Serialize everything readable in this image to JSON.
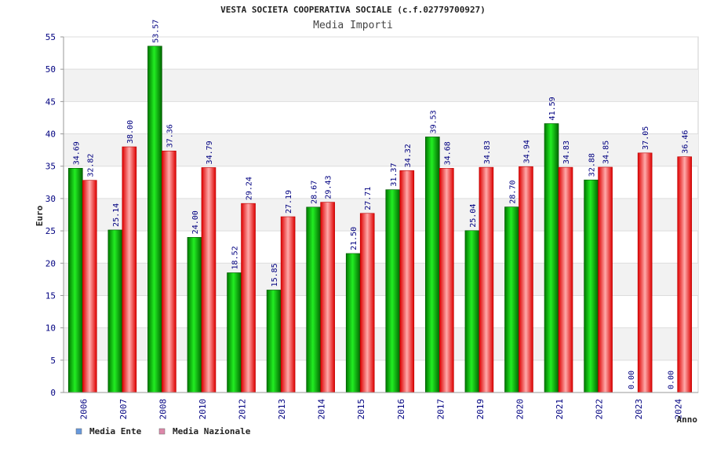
{
  "chart_data": {
    "type": "bar",
    "title": "VESTA SOCIETA COOPERATIVA SOCIALE (c.f.02779700927)",
    "subtitle": "Media Importi",
    "xlabel": "Anno",
    "ylabel": "Euro",
    "ylim": [
      0,
      55
    ],
    "yticks": [
      0,
      5,
      10,
      15,
      20,
      25,
      30,
      35,
      40,
      45,
      50,
      55
    ],
    "grid": true,
    "legend_position": "bottom-left",
    "categories": [
      "2006",
      "2007",
      "2008",
      "2010",
      "2012",
      "2013",
      "2014",
      "2015",
      "2016",
      "2017",
      "2019",
      "2020",
      "2021",
      "2022",
      "2023",
      "2024"
    ],
    "series": [
      {
        "name": "Media Ente",
        "legend_color": "#6699dd",
        "bar_color": "#00aa00",
        "values": [
          34.69,
          25.14,
          53.57,
          24.0,
          18.52,
          15.85,
          28.67,
          21.5,
          31.37,
          39.53,
          25.04,
          28.7,
          41.59,
          32.88,
          0.0,
          0.0
        ],
        "labels": [
          "34.69",
          "25.14",
          "53.57",
          "24.00",
          "18.52",
          "15.85",
          "28.67",
          "21.50",
          "31.37",
          "39.53",
          "25.04",
          "28.70",
          "41.59",
          "32.88",
          "0.00",
          "0.00"
        ]
      },
      {
        "name": "Media Nazionale",
        "legend_color": "#dd88aa",
        "bar_color": "#ee1111",
        "values": [
          32.82,
          38.0,
          37.36,
          34.79,
          29.24,
          27.19,
          29.43,
          27.71,
          34.32,
          34.68,
          34.83,
          34.94,
          34.83,
          34.85,
          37.05,
          36.46
        ],
        "labels": [
          "32.82",
          "38.00",
          "37.36",
          "34.79",
          "29.24",
          "27.19",
          "29.43",
          "27.71",
          "34.32",
          "34.68",
          "34.83",
          "34.94",
          "34.83",
          "34.85",
          "37.05",
          "36.46"
        ]
      }
    ]
  }
}
